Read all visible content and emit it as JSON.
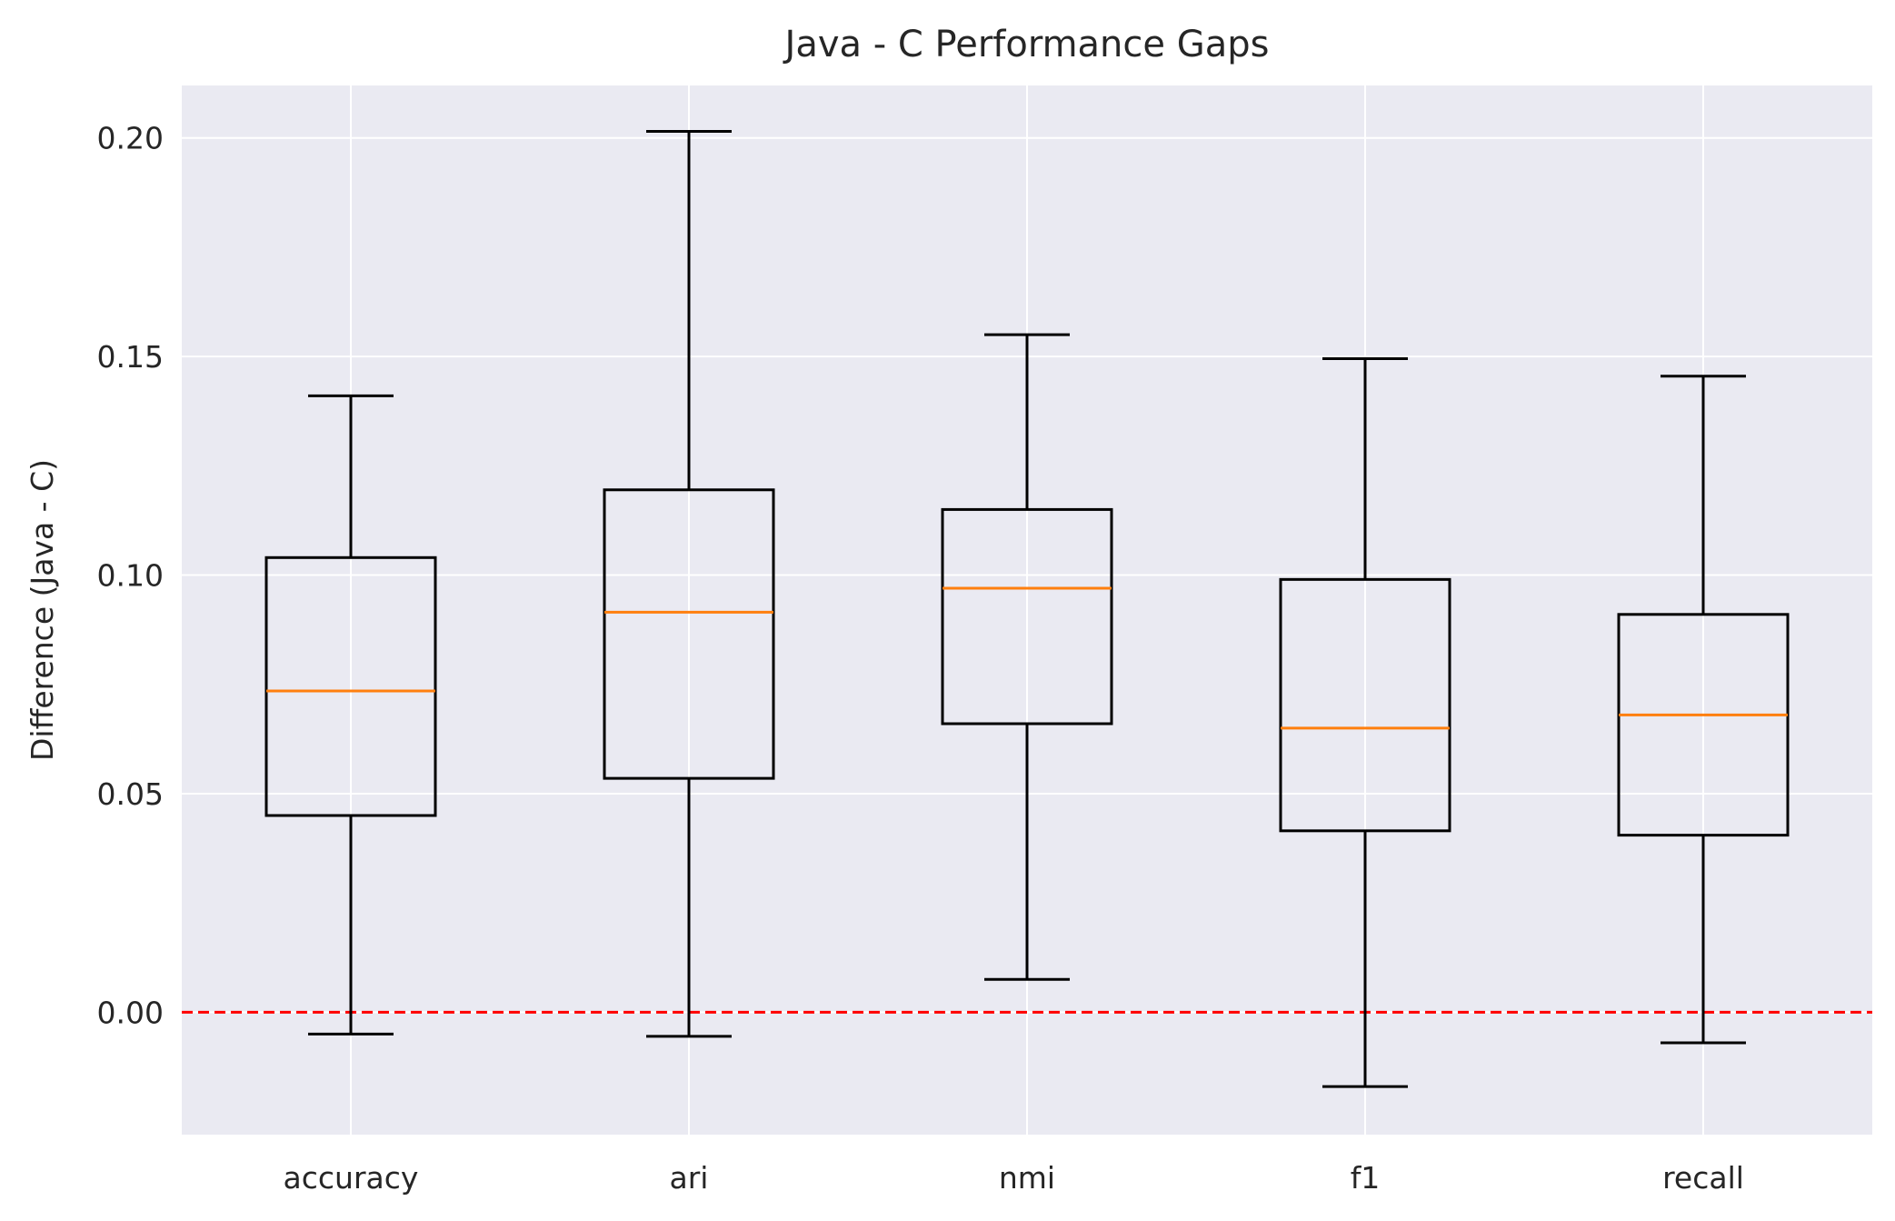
{
  "chart_data": {
    "type": "box",
    "title": "Java - C Performance Gaps",
    "xlabel": "",
    "ylabel": "Difference (Java - C)",
    "ylim": [
      -0.028,
      0.212
    ],
    "yticks": [
      0.0,
      0.05,
      0.1,
      0.15,
      0.2
    ],
    "ytick_labels": [
      "0.00",
      "0.05",
      "0.10",
      "0.15",
      "0.20"
    ],
    "categories": [
      "accuracy",
      "ari",
      "nmi",
      "f1",
      "recall"
    ],
    "boxes": [
      {
        "label": "accuracy",
        "whisker_low": -0.005,
        "q1": 0.045,
        "median": 0.0735,
        "q3": 0.104,
        "whisker_high": 0.141
      },
      {
        "label": "ari",
        "whisker_low": -0.0055,
        "q1": 0.0535,
        "median": 0.0915,
        "q3": 0.1195,
        "whisker_high": 0.2015
      },
      {
        "label": "nmi",
        "whisker_low": 0.0075,
        "q1": 0.066,
        "median": 0.097,
        "q3": 0.115,
        "whisker_high": 0.155
      },
      {
        "label": "f1",
        "whisker_low": -0.017,
        "q1": 0.0415,
        "median": 0.065,
        "q3": 0.099,
        "whisker_high": 0.1495
      },
      {
        "label": "recall",
        "whisker_low": -0.007,
        "q1": 0.0405,
        "median": 0.068,
        "q3": 0.091,
        "whisker_high": 0.1455
      }
    ],
    "reference_line": {
      "y": 0.0,
      "style": "dashed",
      "color": "#ff0000"
    },
    "grid": true,
    "colors": {
      "plot_background": "#eaeaf2",
      "grid": "#ffffff",
      "box": "#000000",
      "median": "#ff7f0e",
      "text": "#262626"
    }
  }
}
